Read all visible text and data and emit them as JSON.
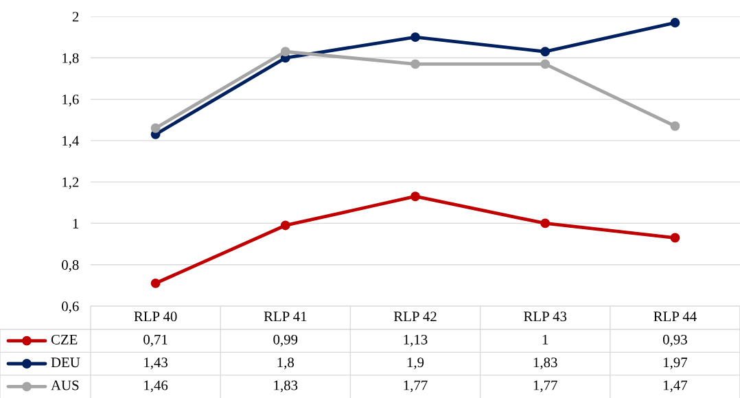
{
  "chart_data": {
    "type": "line",
    "categories": [
      "RLP 40",
      "RLP 41",
      "RLP 42",
      "RLP 43",
      "RLP 44"
    ],
    "series": [
      {
        "name": "CZE",
        "color": "#c00000",
        "values": [
          0.71,
          0.99,
          1.13,
          1,
          0.93
        ],
        "value_labels": [
          "0,71",
          "0,99",
          "1,13",
          "1",
          "0,93"
        ]
      },
      {
        "name": "DEU",
        "color": "#002060",
        "values": [
          1.43,
          1.8,
          1.9,
          1.83,
          1.97
        ],
        "value_labels": [
          "1,43",
          "1,8",
          "1,9",
          "1,83",
          "1,97"
        ]
      },
      {
        "name": "AUS",
        "color": "#a5a5a5",
        "values": [
          1.46,
          1.83,
          1.77,
          1.77,
          1.47
        ],
        "value_labels": [
          "1,46",
          "1,83",
          "1,77",
          "1,77",
          "1,47"
        ]
      }
    ],
    "ylim": [
      0.6,
      2
    ],
    "yticks": [
      {
        "value": 0.6,
        "label": "0,6"
      },
      {
        "value": 0.8,
        "label": "0,8"
      },
      {
        "value": 1,
        "label": "1"
      },
      {
        "value": 1.2,
        "label": "1,2"
      },
      {
        "value": 1.4,
        "label": "1,4"
      },
      {
        "value": 1.6,
        "label": "1,6"
      },
      {
        "value": 1.8,
        "label": "1,8"
      },
      {
        "value": 2,
        "label": "2"
      }
    ],
    "grid": "y",
    "marker": "circle",
    "line_style": "solid",
    "legend": "bottom"
  }
}
